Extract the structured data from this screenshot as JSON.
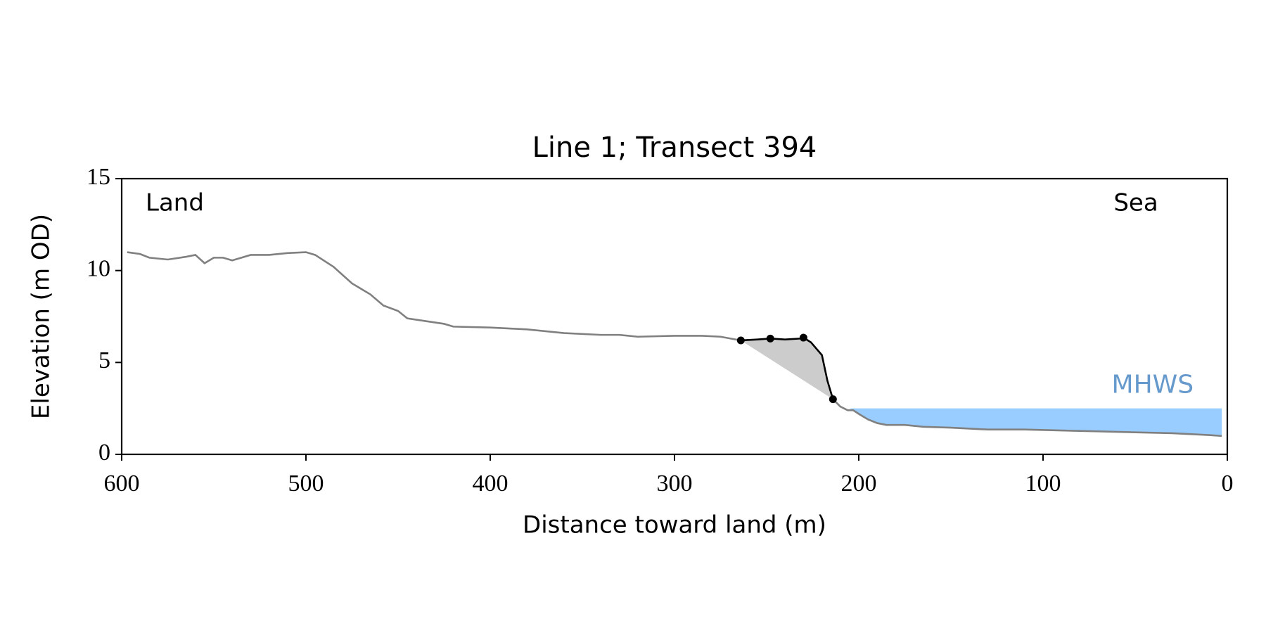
{
  "chart_data": {
    "type": "line",
    "title": "Line 1; Transect 394",
    "xlabel": "Distance toward land (m)",
    "ylabel": "Elevation (m OD)",
    "xlim": [
      600,
      0
    ],
    "ylim": [
      0,
      15
    ],
    "xticks": [
      600,
      500,
      400,
      300,
      200,
      100,
      0
    ],
    "yticks": [
      0,
      5,
      10,
      15
    ],
    "x": [
      597,
      590,
      585,
      575,
      565,
      560,
      555,
      550,
      545,
      540,
      530,
      520,
      510,
      500,
      495,
      485,
      475,
      465,
      458,
      450,
      445,
      435,
      425,
      420,
      400,
      380,
      360,
      340,
      330,
      320,
      300,
      285,
      275,
      264,
      255,
      248,
      240,
      232,
      230,
      226,
      220,
      217,
      214,
      210,
      206,
      203,
      200,
      195,
      190,
      185,
      175,
      165,
      150,
      130,
      110,
      90,
      70,
      50,
      30,
      10,
      3
    ],
    "series": [
      {
        "color": "#808080",
        "values": [
          11.0,
          10.9,
          10.7,
          10.6,
          10.75,
          10.85,
          10.4,
          10.7,
          10.7,
          10.55,
          10.85,
          10.85,
          10.95,
          11.0,
          10.85,
          10.2,
          9.3,
          8.7,
          8.1,
          7.8,
          7.4,
          7.25,
          7.1,
          6.95,
          6.9,
          6.8,
          6.6,
          6.5,
          6.5,
          6.4,
          6.45,
          6.45,
          6.4,
          6.2,
          null,
          null,
          null,
          null,
          null,
          null,
          null,
          null,
          3.0,
          2.6,
          2.4,
          2.4,
          2.2,
          1.9,
          1.7,
          1.6,
          1.6,
          1.5,
          1.45,
          1.35,
          1.35,
          1.3,
          1.25,
          1.2,
          1.15,
          1.05,
          1.0
        ]
      },
      {
        "color": "#000000",
        "fill": "#cccccc",
        "values": [
          null,
          null,
          null,
          null,
          null,
          null,
          null,
          null,
          null,
          null,
          null,
          null,
          null,
          null,
          null,
          null,
          null,
          null,
          null,
          null,
          null,
          null,
          null,
          null,
          null,
          null,
          null,
          null,
          null,
          null,
          null,
          null,
          null,
          6.2,
          6.25,
          6.3,
          6.25,
          6.3,
          6.35,
          6.1,
          5.4,
          4.0,
          3.0,
          null,
          null,
          null,
          null,
          null,
          null,
          null,
          null,
          null,
          null,
          null,
          null,
          null,
          null,
          null,
          null,
          null,
          null
        ]
      },
      {
        "color": "#000000",
        "line": false,
        "values": [
          null,
          null,
          null,
          null,
          null,
          null,
          null,
          null,
          null,
          null,
          null,
          null,
          null,
          null,
          null,
          null,
          null,
          null,
          null,
          null,
          null,
          null,
          null,
          null,
          null,
          null,
          null,
          null,
          null,
          null,
          null,
          null,
          null,
          6.2,
          null,
          6.3,
          null,
          null,
          6.35,
          null,
          null,
          null,
          3.0,
          null,
          null,
          null,
          null,
          null,
          null,
          null,
          null,
          null,
          null,
          null,
          null,
          null,
          null,
          null,
          null,
          null,
          null
        ]
      }
    ],
    "hline": {
      "value": 2.5,
      "label": "MHWS",
      "color": "#99ccff",
      "text_color": "#6699cc",
      "x": [
        205,
        3
      ]
    },
    "annotations": [
      {
        "text": "Land"
      },
      {
        "text": "Sea"
      }
    ]
  }
}
